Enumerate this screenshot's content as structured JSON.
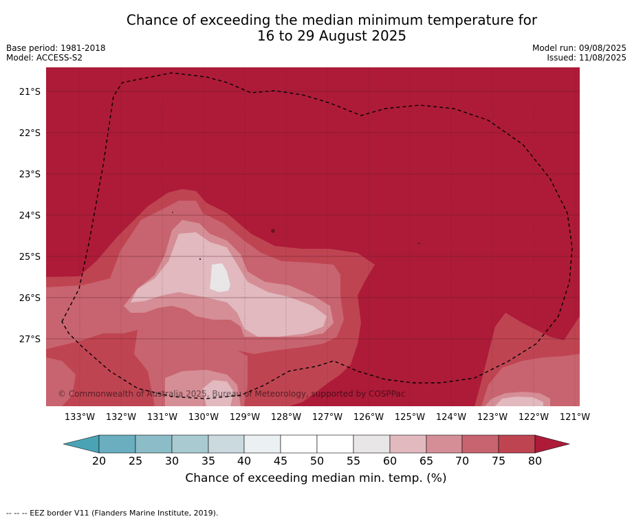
{
  "title_line1": "Chance of exceeding the median minimum temperature for",
  "title_line2": "16 to 29 August 2025",
  "base_period": "Base period: 1981-2018",
  "model": "Model: ACCESS-S2",
  "model_run": "Model run: 09/08/2025",
  "issued": "Issued: 11/08/2025",
  "copyright": "© Commonwealth of Australia 2025, Bureau of Meteorology, supported by COSPPac",
  "lat_labels": [
    "21°S",
    "22°S",
    "23°S",
    "24°S",
    "25°S",
    "26°S",
    "27°S"
  ],
  "lon_labels": [
    "133°W",
    "132°W",
    "131°W",
    "130°W",
    "129°W",
    "128°W",
    "127°W",
    "126°W",
    "125°W",
    "124°W",
    "123°W",
    "122°W",
    "121°W"
  ],
  "colorbar": {
    "label": "Chance of exceeding median min. temp. (%)",
    "ticks": [
      "20",
      "25",
      "30",
      "35",
      "40",
      "45",
      "50",
      "55",
      "60",
      "65",
      "70",
      "75",
      "80"
    ],
    "colors": [
      "#4aa3b5",
      "#6aaec0",
      "#8bbcc8",
      "#a9cad1",
      "#cbdadf",
      "#ebf0f2",
      "#ffffff",
      "#ffffff",
      "#e8e6e7",
      "#e1b9bf",
      "#d58e96",
      "#c8646f",
      "#bf4452",
      "#ad1b38"
    ]
  },
  "map_colors": {
    "c80": "#ad1b38",
    "c75": "#bf4452",
    "c70": "#c8646f",
    "c65": "#d58e96",
    "c60": "#e1b9bf",
    "c55": "#e8e6e7"
  },
  "footer": "--  --  -- EEZ border V11 (Flanders Marine Institute, 2019)."
}
